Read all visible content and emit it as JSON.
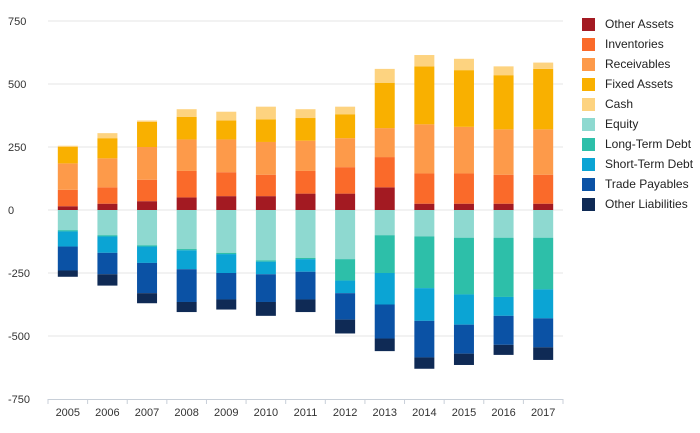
{
  "chart_data": {
    "type": "bar",
    "stacked": true,
    "title": "",
    "xlabel": "",
    "ylabel": "",
    "categories": [
      "2005",
      "2006",
      "2007",
      "2008",
      "2009",
      "2010",
      "2011",
      "2012",
      "2013",
      "2014",
      "2015",
      "2016",
      "2017"
    ],
    "ylim": [
      -750,
      750
    ],
    "yticks": [
      -750,
      -500,
      -250,
      0,
      250,
      500,
      750
    ],
    "grid": true,
    "legend_position": "right",
    "series": [
      {
        "name": "Other Assets",
        "color": "#a31a22",
        "sign": "positive",
        "values": [
          15,
          25,
          35,
          50,
          55,
          55,
          65,
          65,
          90,
          25,
          25,
          25,
          25
        ]
      },
      {
        "name": "Inventories",
        "color": "#fa6a2a",
        "sign": "positive",
        "values": [
          65,
          65,
          85,
          105,
          95,
          85,
          90,
          105,
          120,
          120,
          120,
          115,
          115
        ]
      },
      {
        "name": "Receivables",
        "color": "#fd9a4a",
        "sign": "positive",
        "values": [
          105,
          115,
          130,
          125,
          130,
          130,
          120,
          115,
          115,
          195,
          185,
          180,
          180
        ]
      },
      {
        "name": "Fixed Assets",
        "color": "#f9b000",
        "sign": "positive",
        "values": [
          65,
          80,
          100,
          90,
          75,
          90,
          90,
          95,
          180,
          230,
          225,
          215,
          240
        ]
      },
      {
        "name": "Cash",
        "color": "#fdd380",
        "sign": "positive",
        "values": [
          5,
          20,
          5,
          30,
          35,
          50,
          35,
          30,
          55,
          45,
          45,
          35,
          25
        ]
      },
      {
        "name": "Equity",
        "color": "#8ed9d0",
        "sign": "negative",
        "values": [
          -80,
          -100,
          -140,
          -155,
          -170,
          -200,
          -190,
          -195,
          -100,
          -105,
          -110,
          -110,
          -110
        ]
      },
      {
        "name": "Long-Term Debt",
        "color": "#2dbfa9",
        "sign": "negative",
        "values": [
          -5,
          -5,
          -5,
          -5,
          -5,
          -5,
          -5,
          -85,
          -150,
          -205,
          -225,
          -235,
          -205
        ]
      },
      {
        "name": "Short-Term Debt",
        "color": "#0ba4d4",
        "sign": "negative",
        "values": [
          -60,
          -65,
          -65,
          -75,
          -75,
          -50,
          -50,
          -50,
          -125,
          -130,
          -120,
          -75,
          -115
        ]
      },
      {
        "name": "Trade Payables",
        "color": "#0b52a5",
        "sign": "negative",
        "values": [
          -95,
          -85,
          -120,
          -130,
          -105,
          -110,
          -110,
          -105,
          -135,
          -145,
          -115,
          -115,
          -115
        ]
      },
      {
        "name": "Other Liabilities",
        "color": "#0f2a55",
        "sign": "negative",
        "values": [
          -25,
          -45,
          -40,
          -40,
          -40,
          -55,
          -50,
          -55,
          -50,
          -45,
          -45,
          -40,
          -50
        ]
      }
    ]
  }
}
